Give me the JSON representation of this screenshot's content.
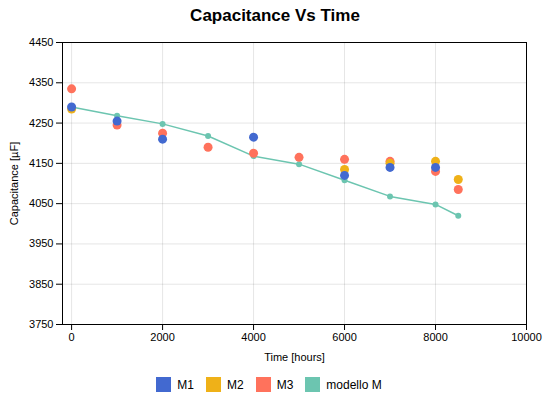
{
  "chart_data": {
    "type": "scatter",
    "title": "Capacitance Vs Time",
    "xlabel": "Time [hours]",
    "ylabel": "Capacitance [µF]",
    "xlim": [
      -200,
      10000
    ],
    "ylim": [
      3750,
      4450
    ],
    "xticks": [
      0,
      2000,
      4000,
      6000,
      8000,
      10000
    ],
    "yticks": [
      3750,
      3850,
      3950,
      4050,
      4150,
      4250,
      4350,
      4450
    ],
    "grid": true,
    "legend": "bottom",
    "series": [
      {
        "name": "M1",
        "type": "scatter",
        "marker": "circle",
        "x": [
          0,
          1000,
          2000,
          4000,
          6000,
          7000,
          8000
        ],
        "values": [
          4290,
          4255,
          4210,
          4215,
          4120,
          4140,
          4140
        ]
      },
      {
        "name": "M2",
        "type": "scatter",
        "marker": "circle",
        "x": [
          0,
          6000,
          7000,
          8000,
          8500
        ],
        "values": [
          4285,
          4135,
          4150,
          4155,
          4110
        ]
      },
      {
        "name": "M3",
        "type": "scatter",
        "marker": "circle",
        "x": [
          0,
          1000,
          2000,
          3000,
          4000,
          5000,
          6000,
          7000,
          8000,
          8500
        ],
        "values": [
          4335,
          4245,
          4225,
          4190,
          4175,
          4165,
          4160,
          4155,
          4130,
          4085
        ]
      },
      {
        "name": "modello M",
        "type": "line",
        "marker": "circle",
        "x": [
          0,
          1000,
          2000,
          3000,
          4000,
          5000,
          6000,
          7000,
          8000,
          8500
        ],
        "values": [
          4290,
          4268,
          4248,
          4218,
          4168,
          4148,
          4108,
          4068,
          4048,
          4020
        ]
      }
    ]
  }
}
